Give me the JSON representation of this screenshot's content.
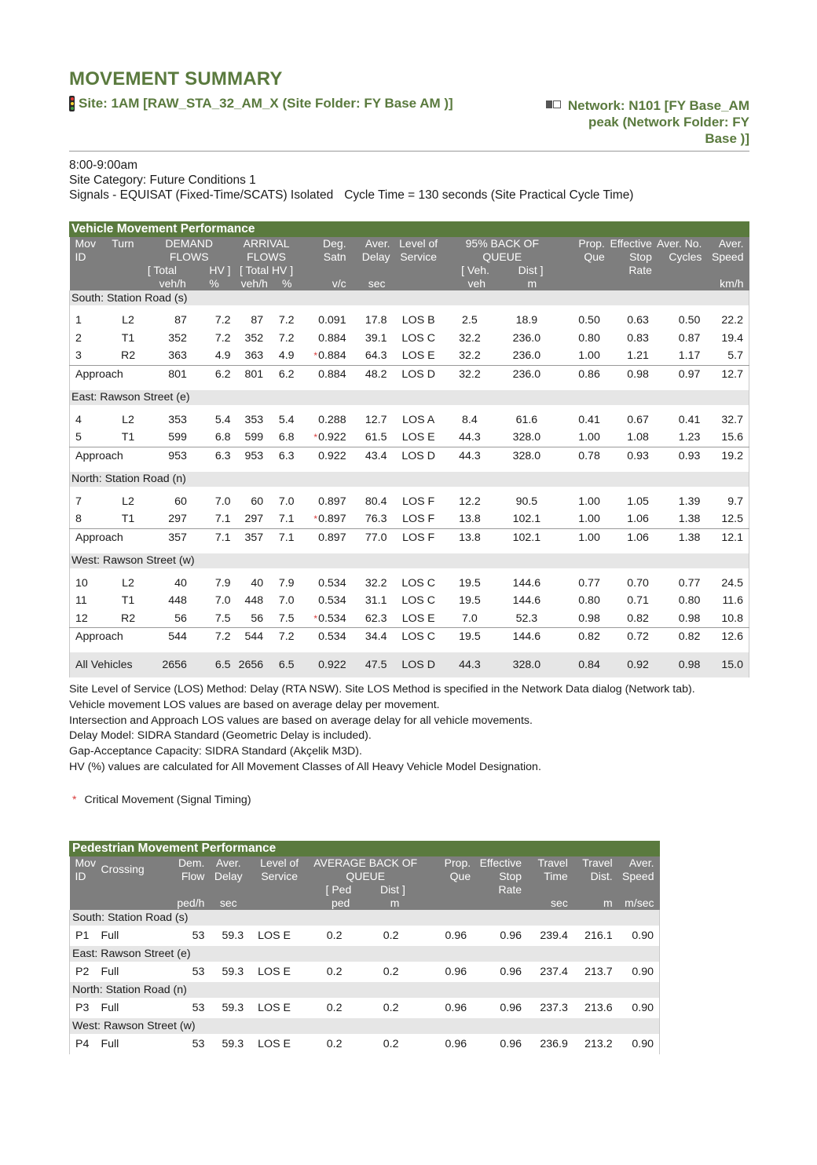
{
  "title": "MOVEMENT SUMMARY",
  "site": "Site: 1AM [RAW_STA_32_AM_X (Site Folder: FY Base AM )]",
  "network": {
    "line1": "Network: N101 [FY Base_AM",
    "line2": "peak (Network Folder: FY",
    "line3": "Base )]"
  },
  "info": {
    "time": "8:00-9:00am",
    "category": "Site Category: Future Conditions 1",
    "signals": "Signals - EQUISAT (Fixed-Time/SCATS) Isolated",
    "cycle": "Cycle Time = 130 seconds (Site Practical Cycle Time)"
  },
  "vehicle": {
    "title": "Vehicle Movement Performance",
    "headers": {
      "mov": "Mov",
      "id": "ID",
      "turn": "Turn",
      "demand": "DEMAND",
      "flows": "FLOWS",
      "total": "[ Total",
      "hv": "HV ]",
      "vehh": "veh/h",
      "pct": "%",
      "arrival": "ARRIVAL",
      "arrflows": "FLOWS",
      "totalhv": "[ Total HV ]",
      "arrvehh": "veh/h",
      "arrpct": "%",
      "deg": "Deg.",
      "satn": "Satn",
      "vc": "v/c",
      "aver": "Aver.",
      "delay": "Delay",
      "sec": "sec",
      "levelof": "Level of",
      "service": "Service",
      "back": "95% BACK OF",
      "queue": "QUEUE",
      "vehb": "[ Veh.",
      "dist": "Dist ]",
      "veh": "veh",
      "m": "m",
      "prop": "Prop.",
      "que": "Que",
      "effective": "Effective",
      "stop": "Stop",
      "rate": "Rate",
      "averno": "Aver. No.",
      "cycles": "Cycles",
      "aver2": "Aver.",
      "speed": "Speed",
      "kmh": "km/h"
    },
    "sections": [
      {
        "name": "South: Station Road (s)",
        "rows": [
          {
            "id": "1",
            "turn": "L2",
            "dt": "87",
            "dhv": "7.2",
            "at": "87",
            "ahv": "7.2",
            "crit": "",
            "deg": "0.091",
            "delay": "17.8",
            "los": "LOS B",
            "qv": "2.5",
            "qd": "18.9",
            "pq": "0.50",
            "esr": "0.63",
            "cyc": "0.50",
            "spd": "22.2"
          },
          {
            "id": "2",
            "turn": "T1",
            "dt": "352",
            "dhv": "7.2",
            "at": "352",
            "ahv": "7.2",
            "crit": "",
            "deg": "0.884",
            "delay": "39.1",
            "los": "LOS C",
            "qv": "32.2",
            "qd": "236.0",
            "pq": "0.80",
            "esr": "0.83",
            "cyc": "0.87",
            "spd": "19.4"
          },
          {
            "id": "3",
            "turn": "R2",
            "dt": "363",
            "dhv": "4.9",
            "at": "363",
            "ahv": "4.9",
            "crit": "*",
            "deg": "0.884",
            "delay": "64.3",
            "los": "LOS E",
            "qv": "32.2",
            "qd": "236.0",
            "pq": "1.00",
            "esr": "1.21",
            "cyc": "1.17",
            "spd": "5.7"
          }
        ],
        "approach": {
          "label": "Approach",
          "dt": "801",
          "dhv": "6.2",
          "at": "801",
          "ahv": "6.2",
          "deg": "0.884",
          "delay": "48.2",
          "los": "LOS D",
          "qv": "32.2",
          "qd": "236.0",
          "pq": "0.86",
          "esr": "0.98",
          "cyc": "0.97",
          "spd": "12.7"
        }
      },
      {
        "name": "East: Rawson Street (e)",
        "rows": [
          {
            "id": "4",
            "turn": "L2",
            "dt": "353",
            "dhv": "5.4",
            "at": "353",
            "ahv": "5.4",
            "crit": "",
            "deg": "0.288",
            "delay": "12.7",
            "los": "LOS A",
            "qv": "8.4",
            "qd": "61.6",
            "pq": "0.41",
            "esr": "0.67",
            "cyc": "0.41",
            "spd": "32.7"
          },
          {
            "id": "5",
            "turn": "T1",
            "dt": "599",
            "dhv": "6.8",
            "at": "599",
            "ahv": "6.8",
            "crit": "*",
            "deg": "0.922",
            "delay": "61.5",
            "los": "LOS E",
            "qv": "44.3",
            "qd": "328.0",
            "pq": "1.00",
            "esr": "1.08",
            "cyc": "1.23",
            "spd": "15.6"
          }
        ],
        "approach": {
          "label": "Approach",
          "dt": "953",
          "dhv": "6.3",
          "at": "953",
          "ahv": "6.3",
          "deg": "0.922",
          "delay": "43.4",
          "los": "LOS D",
          "qv": "44.3",
          "qd": "328.0",
          "pq": "0.78",
          "esr": "0.93",
          "cyc": "0.93",
          "spd": "19.2"
        }
      },
      {
        "name": "North: Station Road (n)",
        "rows": [
          {
            "id": "7",
            "turn": "L2",
            "dt": "60",
            "dhv": "7.0",
            "at": "60",
            "ahv": "7.0",
            "crit": "",
            "deg": "0.897",
            "delay": "80.4",
            "los": "LOS F",
            "qv": "12.2",
            "qd": "90.5",
            "pq": "1.00",
            "esr": "1.05",
            "cyc": "1.39",
            "spd": "9.7"
          },
          {
            "id": "8",
            "turn": "T1",
            "dt": "297",
            "dhv": "7.1",
            "at": "297",
            "ahv": "7.1",
            "crit": "*",
            "deg": "0.897",
            "delay": "76.3",
            "los": "LOS F",
            "qv": "13.8",
            "qd": "102.1",
            "pq": "1.00",
            "esr": "1.06",
            "cyc": "1.38",
            "spd": "12.5"
          }
        ],
        "approach": {
          "label": "Approach",
          "dt": "357",
          "dhv": "7.1",
          "at": "357",
          "ahv": "7.1",
          "deg": "0.897",
          "delay": "77.0",
          "los": "LOS F",
          "qv": "13.8",
          "qd": "102.1",
          "pq": "1.00",
          "esr": "1.06",
          "cyc": "1.38",
          "spd": "12.1"
        }
      },
      {
        "name": "West: Rawson Street (w)",
        "rows": [
          {
            "id": "10",
            "turn": "L2",
            "dt": "40",
            "dhv": "7.9",
            "at": "40",
            "ahv": "7.9",
            "crit": "",
            "deg": "0.534",
            "delay": "32.2",
            "los": "LOS C",
            "qv": "19.5",
            "qd": "144.6",
            "pq": "0.77",
            "esr": "0.70",
            "cyc": "0.77",
            "spd": "24.5"
          },
          {
            "id": "11",
            "turn": "T1",
            "dt": "448",
            "dhv": "7.0",
            "at": "448",
            "ahv": "7.0",
            "crit": "",
            "deg": "0.534",
            "delay": "31.1",
            "los": "LOS C",
            "qv": "19.5",
            "qd": "144.6",
            "pq": "0.80",
            "esr": "0.71",
            "cyc": "0.80",
            "spd": "11.6"
          },
          {
            "id": "12",
            "turn": "R2",
            "dt": "56",
            "dhv": "7.5",
            "at": "56",
            "ahv": "7.5",
            "crit": "*",
            "deg": "0.534",
            "delay": "62.3",
            "los": "LOS E",
            "qv": "7.0",
            "qd": "52.3",
            "pq": "0.98",
            "esr": "0.82",
            "cyc": "0.98",
            "spd": "10.8"
          }
        ],
        "approach": {
          "label": "Approach",
          "dt": "544",
          "dhv": "7.2",
          "at": "544",
          "ahv": "7.2",
          "deg": "0.534",
          "delay": "34.4",
          "los": "LOS C",
          "qv": "19.5",
          "qd": "144.6",
          "pq": "0.82",
          "esr": "0.72",
          "cyc": "0.82",
          "spd": "12.6"
        }
      }
    ],
    "all": {
      "label": "All Vehicles",
      "dt": "2656",
      "dhv": "6.5",
      "at": "2656",
      "ahv": "6.5",
      "deg": "0.922",
      "delay": "47.5",
      "los": "LOS D",
      "qv": "44.3",
      "qd": "328.0",
      "pq": "0.84",
      "esr": "0.92",
      "cyc": "0.98",
      "spd": "15.0"
    }
  },
  "notes": [
    "Site Level of Service (LOS) Method: Delay (RTA NSW). Site LOS Method is specified in the Network Data dialog (Network tab).",
    "Vehicle movement LOS values are based on average delay per movement.",
    "Intersection and Approach LOS values are based on average delay for all vehicle movements.",
    "Delay Model: SIDRA Standard (Geometric Delay is included).",
    "Gap-Acceptance Capacity: SIDRA Standard (Akçelik M3D).",
    "HV (%) values are calculated for All Movement Classes of All Heavy Vehicle Model Designation."
  ],
  "critical": {
    "symbol": "*",
    "label": "Critical Movement (Signal Timing)"
  },
  "pedestrian": {
    "title": "Pedestrian Movement Performance",
    "headers": {
      "mov": "Mov",
      "id": "ID",
      "crossing": "Crossing",
      "dem": "Dem.",
      "flow": "Flow",
      "pedh": "ped/h",
      "aver": "Aver.",
      "delay": "Delay",
      "sec": "sec",
      "levelof": "Level of",
      "service": "Service",
      "back": "AVERAGE BACK OF",
      "queue": "QUEUE",
      "pedb": "[ Ped",
      "dist": "Dist ]",
      "ped": "ped",
      "m": "m",
      "prop": "Prop.",
      "que": "Que",
      "effective": "Effective",
      "stop": "Stop",
      "rate": "Rate",
      "travel": "Travel",
      "time": "Time",
      "tsec": "sec",
      "travel2": "Travel",
      "tdist": "Dist.",
      "tm": "m",
      "aver2": "Aver.",
      "speed": "Speed",
      "msec": "m/sec"
    },
    "sections": [
      {
        "name": "South: Station Road (s)",
        "row": {
          "id": "P1",
          "cross": "Full",
          "flow": "53",
          "delay": "59.3",
          "los": "LOS E",
          "qp": "0.2",
          "qd": "0.2",
          "pq": "0.96",
          "esr": "0.96",
          "tt": "239.4",
          "td": "216.1",
          "spd": "0.90"
        }
      },
      {
        "name": "East: Rawson Street (e)",
        "row": {
          "id": "P2",
          "cross": "Full",
          "flow": "53",
          "delay": "59.3",
          "los": "LOS E",
          "qp": "0.2",
          "qd": "0.2",
          "pq": "0.96",
          "esr": "0.96",
          "tt": "237.4",
          "td": "213.7",
          "spd": "0.90"
        }
      },
      {
        "name": "North: Station Road (n)",
        "row": {
          "id": "P3",
          "cross": "Full",
          "flow": "53",
          "delay": "59.3",
          "los": "LOS E",
          "qp": "0.2",
          "qd": "0.2",
          "pq": "0.96",
          "esr": "0.96",
          "tt": "237.3",
          "td": "213.6",
          "spd": "0.90"
        }
      },
      {
        "name": "West: Rawson Street (w)",
        "row": {
          "id": "P4",
          "cross": "Full",
          "flow": "53",
          "delay": "59.3",
          "los": "LOS E",
          "qp": "0.2",
          "qd": "0.2",
          "pq": "0.96",
          "esr": "0.96",
          "tt": "236.9",
          "td": "213.2",
          "spd": "0.90"
        }
      }
    ]
  },
  "colors": {
    "accent": "#5a7a3e",
    "header_gray": "#7e7e7e",
    "section_gray": "#e6e6e6",
    "critical": "#d83a3a"
  }
}
